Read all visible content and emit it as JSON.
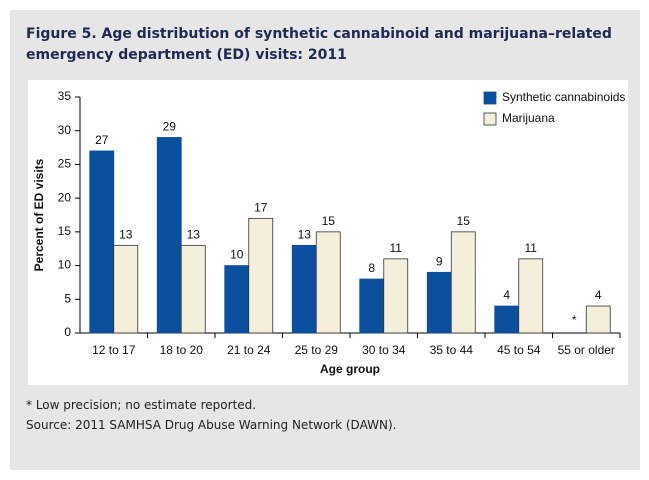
{
  "chart_data": {
    "type": "bar",
    "title": "Figure 5. Age distribution of synthetic cannabinoid and marijuana–related emergency department (ED) visits: 2011",
    "x_label": "Age group",
    "y_label": "Percent of ED visits",
    "categories": [
      "12 to 17",
      "18 to 20",
      "21 to 24",
      "25 to 29",
      "30 to 34",
      "35 to 44",
      "45 to 54",
      "55 or older"
    ],
    "series": [
      {
        "name": "Synthetic cannabinoids",
        "color": "#0b4f9e",
        "values": [
          27,
          29,
          10,
          13,
          8,
          9,
          4,
          null
        ],
        "value_labels": [
          "27",
          "29",
          "10",
          "13",
          "8",
          "9",
          "4",
          "*"
        ]
      },
      {
        "name": "Marijuana",
        "color": "#f4eeda",
        "values": [
          13,
          13,
          17,
          15,
          11,
          15,
          11,
          4
        ],
        "value_labels": [
          "13",
          "13",
          "17",
          "15",
          "11",
          "15",
          "11",
          "4"
        ]
      }
    ],
    "ylim": [
      0,
      35
    ],
    "yticks": [
      0,
      5,
      10,
      15,
      20,
      25,
      30,
      35
    ],
    "grid": false,
    "legend": "top-right",
    "notes": [
      "* Low precision; no estimate reported.",
      "Source: 2011 SAMHSA Drug Abuse Warning Network (DAWN)."
    ]
  }
}
